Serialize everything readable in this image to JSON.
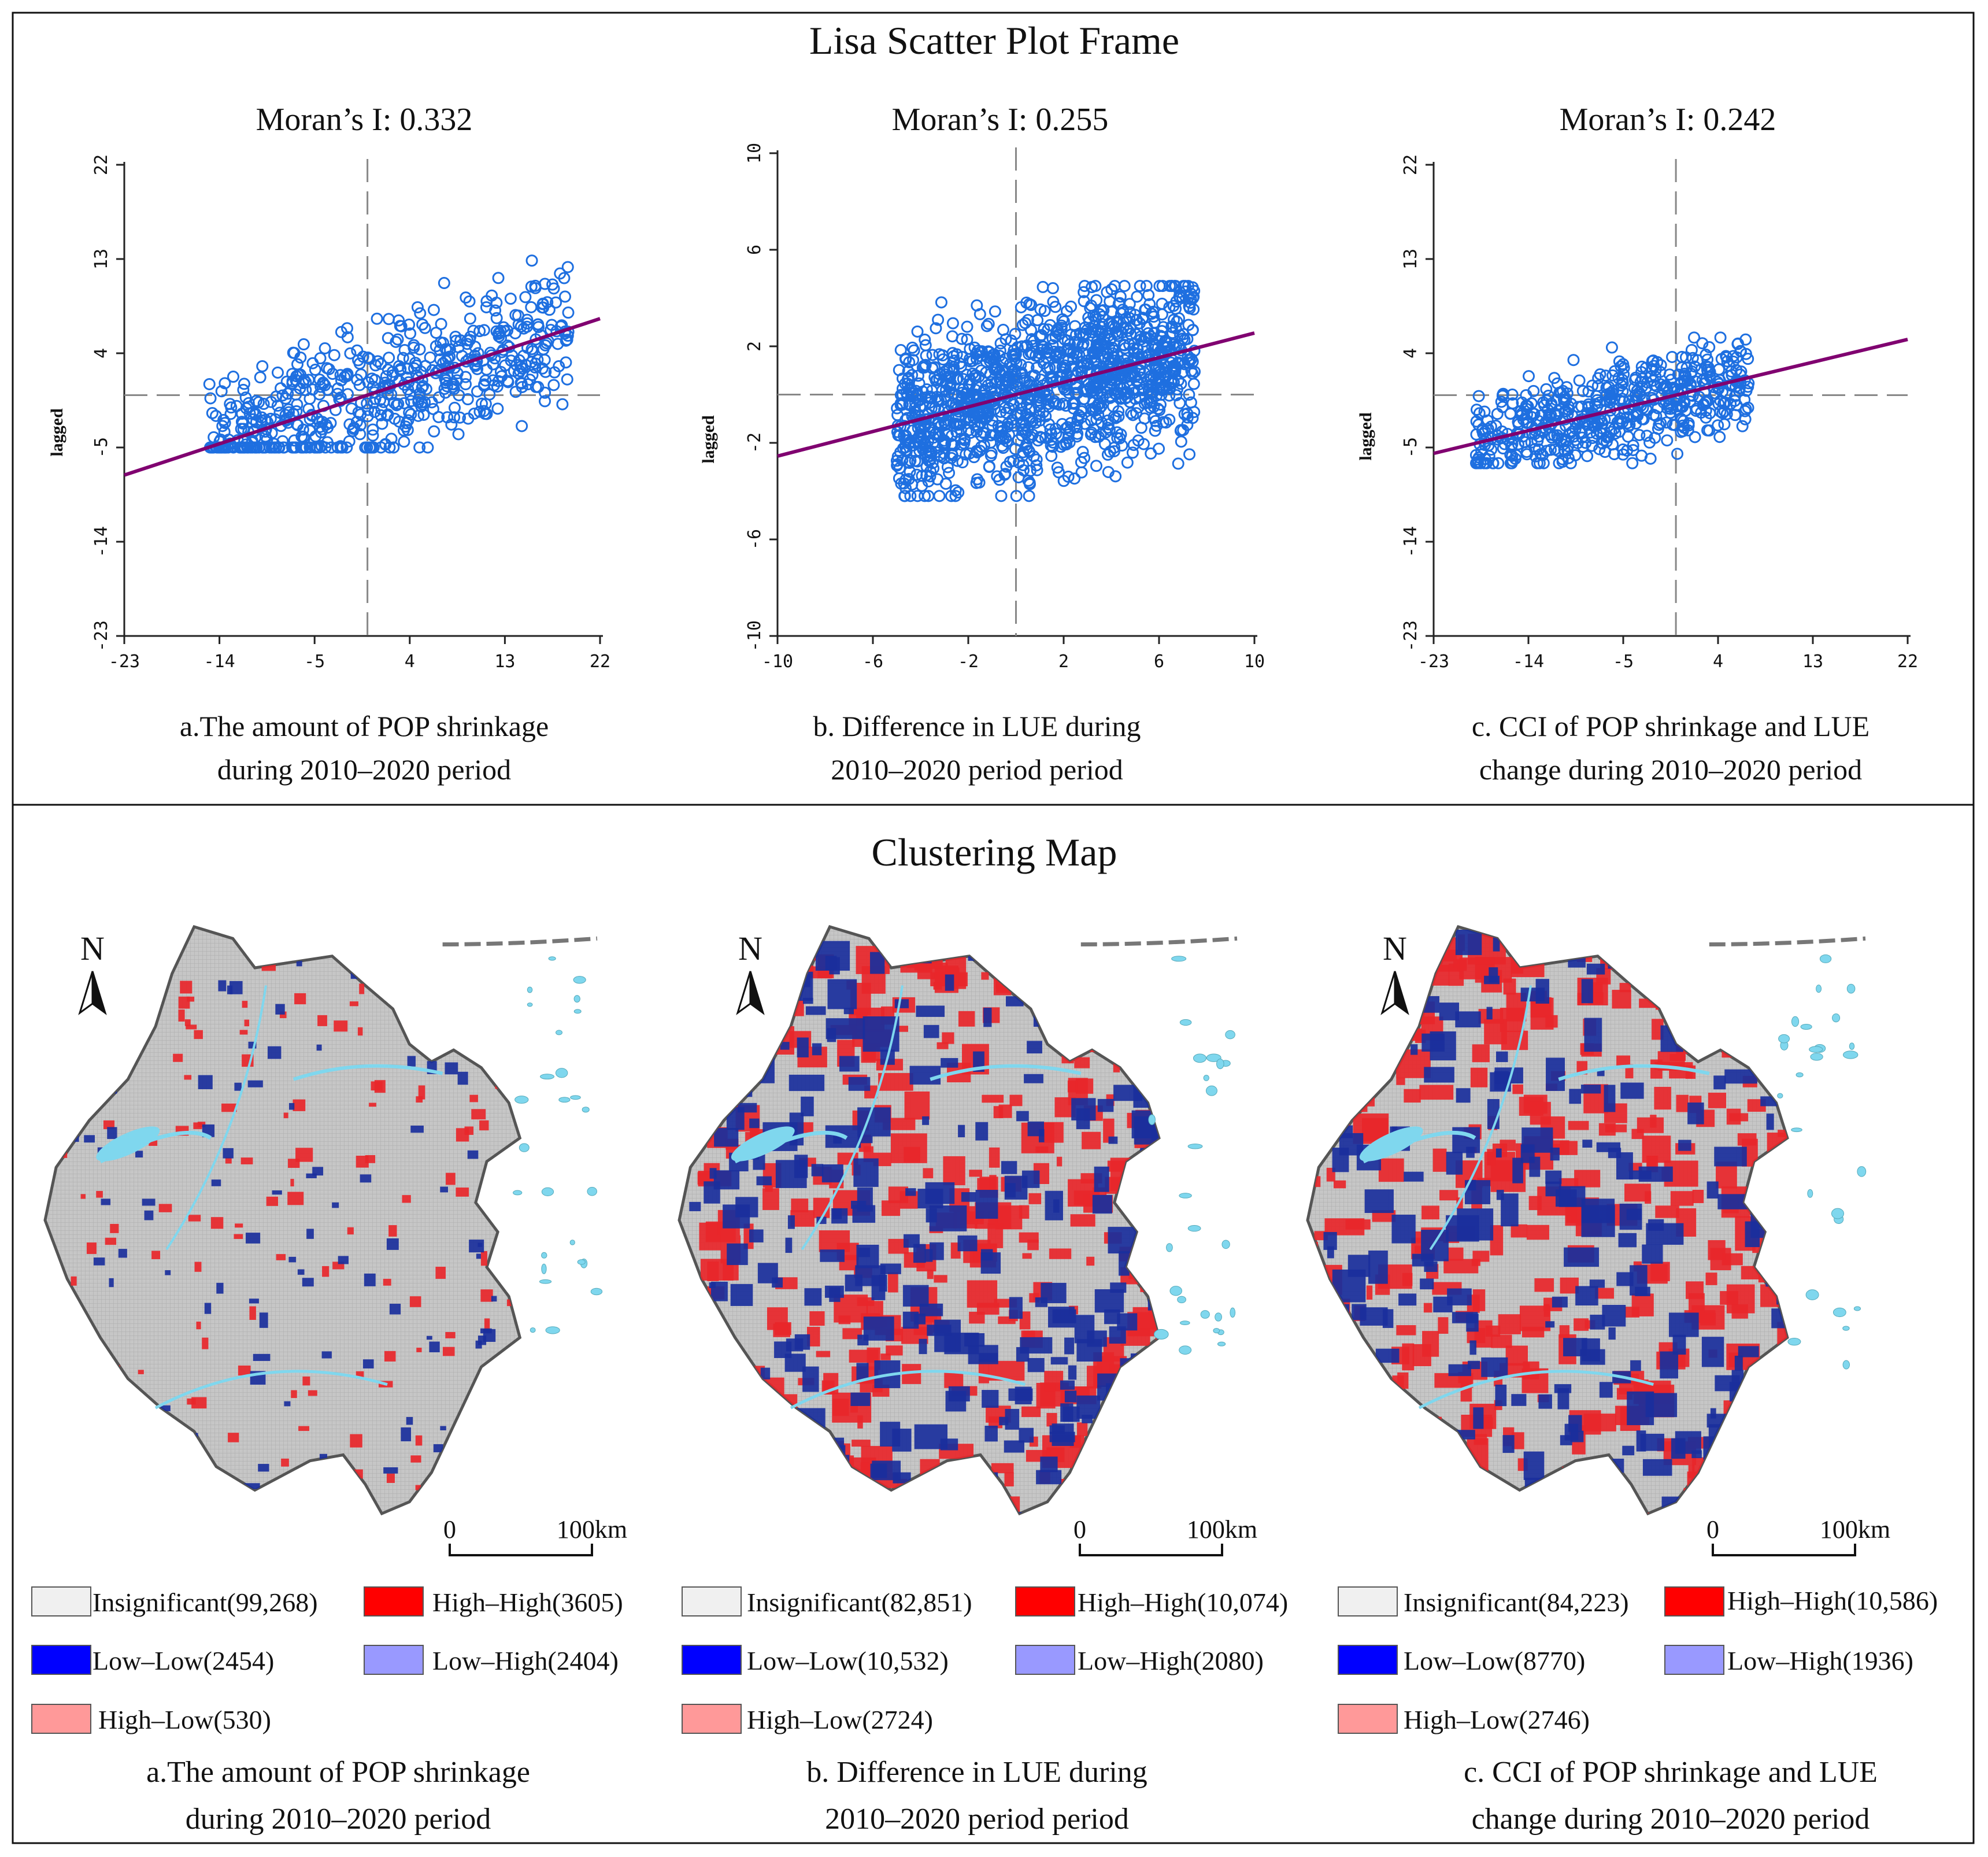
{
  "scatter_section": {
    "title": "Lisa Scatter Plot Frame"
  },
  "map_section": {
    "title": "Clustering Map"
  },
  "map_scale": {
    "zero": "0",
    "distance": "100km"
  },
  "north_label": "N",
  "colors": {
    "insignificant": "#f0f0f0",
    "high_high": "#ff0000",
    "low_low": "#0000ff",
    "low_high": "#9999ff",
    "high_low": "#ff9999",
    "points": "#1e6fe0",
    "regression": "#800070",
    "map_gray": "#c4c4c4",
    "map_blue": "#1a2f9c",
    "map_red": "#e8262a",
    "water": "#7fd7ee"
  },
  "panels": [
    {
      "moran_label": "Moran’s I: 0.332",
      "ylabel": "lagged",
      "caption_line1": "a.The amount of POP shrinkage",
      "caption_line2": "during 2010–2020 period",
      "legend": {
        "insignificant": "Insignificant(99,268)",
        "high_high": "High–High(3605)",
        "low_low": "Low–Low(2454)",
        "low_high": "Low–High(2404)",
        "high_low": "High–Low(530)"
      }
    },
    {
      "moran_label": "Moran’s I: 0.255",
      "ylabel": "lagged",
      "caption_line1": "b. Difference in LUE during",
      "caption_line2": "2010–2020 period period",
      "legend": {
        "insignificant": "Insignificant(82,851)",
        "high_high": "High–High(10,074)",
        "low_low": "Low–Low(10,532)",
        "low_high": "Low–High(2080)",
        "high_low": "High–Low(2724)"
      }
    },
    {
      "moran_label": "Moran’s I: 0.242",
      "ylabel": "lagged",
      "caption_line1": "c. CCI of POP shrinkage and LUE",
      "caption_line2": "change during 2010–2020 period",
      "legend": {
        "insignificant": "Insignificant(84,223)",
        "high_high": "High–High(10,586)",
        "low_low": "Low–Low(8770)",
        "low_high": "Low–High(1936)",
        "high_low": "High–Low(2746)"
      }
    }
  ],
  "chart_data": [
    {
      "type": "scatter",
      "title": "Moran’s I: 0.332",
      "xlabel": "",
      "ylabel": "lagged",
      "xlim": [
        -23,
        22
      ],
      "ylim": [
        -23,
        22
      ],
      "xticks": [
        "-23",
        "-14",
        "-5",
        "4",
        "13",
        "22"
      ],
      "yticks": [
        "-23",
        "-14",
        "-5",
        "4",
        "13",
        "22"
      ],
      "regression_slope": 0.332,
      "cloud": {
        "x_range": [
          -15,
          19
        ],
        "y_range": [
          -5,
          13
        ],
        "count": 600
      },
      "x_median": 0
    },
    {
      "type": "scatter",
      "title": "Moran’s I: 0.255",
      "xlabel": "",
      "ylabel": "lagged",
      "xlim": [
        -10,
        10
      ],
      "ylim": [
        -10,
        10
      ],
      "xticks": [
        "-10",
        "-6",
        "-2",
        "2",
        "6",
        "10"
      ],
      "yticks": [
        "-10",
        "-6",
        "-2",
        "2",
        "6",
        "10"
      ],
      "regression_slope": 0.255,
      "cloud": {
        "x_range": [
          -5,
          7.5
        ],
        "y_range": [
          -4.2,
          4.5
        ],
        "count": 1300
      },
      "x_median": 0
    },
    {
      "type": "scatter",
      "title": "Moran’s I: 0.242",
      "xlabel": "",
      "ylabel": "lagged",
      "xlim": [
        -23,
        22
      ],
      "ylim": [
        -23,
        22
      ],
      "xticks": [
        "-23",
        "-14",
        "-5",
        "4",
        "13",
        "22"
      ],
      "yticks": [
        "-23",
        "-14",
        "-5",
        "4",
        "13",
        "22"
      ],
      "regression_slope": 0.242,
      "cloud": {
        "x_range": [
          -19,
          7
        ],
        "y_range": [
          -6.5,
          5.5
        ],
        "count": 550
      },
      "x_median": 0
    }
  ]
}
